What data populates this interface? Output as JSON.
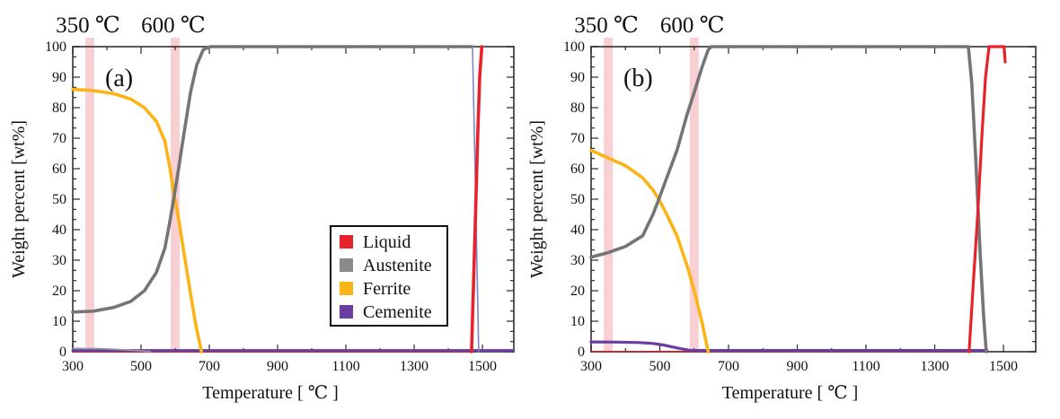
{
  "figure": {
    "background": "#ffffff",
    "frame_color": "#474747",
    "band_color": "#f2a0a6",
    "band_opacity": 0.5,
    "text_color": "#111111"
  },
  "legend": {
    "entries": [
      {
        "label": "Liquid",
        "color": "#e8222a"
      },
      {
        "label": "Austenite",
        "color": "#8a8a8a"
      },
      {
        "label": "Ferrite",
        "color": "#fcb316"
      },
      {
        "label": "Cemenite",
        "color": "#6a3da2"
      }
    ]
  },
  "chart_data": [
    {
      "type": "line",
      "panel_label": "(a)",
      "xlabel": "Temperature [ ℃ ]",
      "ylabel": "Weight percent [wt%]",
      "xlim": [
        300,
        1592
      ],
      "ylim": [
        0,
        100
      ],
      "x_major_ticks": [
        300,
        500,
        700,
        900,
        1100,
        1300,
        1500
      ],
      "x_minor_step": 100,
      "y_major_ticks": [
        0,
        10,
        20,
        30,
        40,
        50,
        60,
        70,
        80,
        90,
        100
      ],
      "y_minors_per_major": 2,
      "grid": false,
      "legend_position": "inside lower right",
      "annotations": [
        {
          "label": "350 ℃",
          "x": 350
        },
        {
          "label": "600 ℃",
          "x": 600
        }
      ],
      "series": [
        {
          "name": "liquid-baseline",
          "phase": "Liquid",
          "color": "#e8222a",
          "width": 2,
          "points": [
            [
              300,
              0
            ],
            [
              1466,
              0
            ]
          ]
        },
        {
          "name": "cemenite",
          "phase": "Cemenite",
          "color": "#6a3da2",
          "width": 3,
          "points": [
            [
              300,
              0.4
            ],
            [
              1590,
              0.4
            ]
          ]
        },
        {
          "name": "austenite-trace",
          "phase": "Austenite",
          "color": "#9a9a9a",
          "width": 1.6,
          "points": [
            [
              300,
              1.1
            ],
            [
              380,
              1.0
            ],
            [
              440,
              0.7
            ],
            [
              490,
              0.35
            ],
            [
              527,
              0.05
            ]
          ]
        },
        {
          "name": "ferrite",
          "phase": "Ferrite",
          "color": "#fcb316",
          "width": 3.6,
          "points": [
            [
              300,
              86
            ],
            [
              360,
              85.6
            ],
            [
              420,
              84.6
            ],
            [
              470,
              82.8
            ],
            [
              510,
              80
            ],
            [
              545,
              75.5
            ],
            [
              570,
              69
            ],
            [
              585,
              60
            ],
            [
              597,
              51
            ],
            [
              608,
              45
            ],
            [
              622,
              35
            ],
            [
              642,
              21
            ],
            [
              660,
              9
            ],
            [
              673,
              2
            ],
            [
              677,
              0
            ]
          ]
        },
        {
          "name": "austenite",
          "phase": "Austenite",
          "color": "#757575",
          "width": 3.6,
          "points": [
            [
              300,
              13
            ],
            [
              360,
              13.3
            ],
            [
              420,
              14.5
            ],
            [
              470,
              16.5
            ],
            [
              510,
              20
            ],
            [
              545,
              26
            ],
            [
              570,
              34
            ],
            [
              585,
              43
            ],
            [
              597,
              51
            ],
            [
              610,
              60
            ],
            [
              625,
              71
            ],
            [
              645,
              85
            ],
            [
              663,
              94
            ],
            [
              682,
              99
            ],
            [
              703,
              100
            ],
            [
              1470,
              100
            ]
          ]
        },
        {
          "name": "austenite-melting",
          "phase": "Austenite",
          "color": "#7d85c6",
          "width": 1.6,
          "points": [
            [
              1471,
              100
            ],
            [
              1480,
              52
            ],
            [
              1489,
              0
            ]
          ]
        },
        {
          "name": "liquid",
          "phase": "Liquid",
          "color": "#e8222a",
          "width": 3.6,
          "points": [
            [
              1468,
              0
            ],
            [
              1478,
              38
            ],
            [
              1486,
              70
            ],
            [
              1492,
              90
            ],
            [
              1498,
              100
            ]
          ]
        }
      ]
    },
    {
      "type": "line",
      "panel_label": "(b)",
      "xlabel": "Temperature [ ℃ ]",
      "ylabel": "Weight percent [wt%]",
      "xlim": [
        300,
        1594
      ],
      "ylim": [
        0,
        100
      ],
      "x_major_ticks": [
        300,
        500,
        700,
        900,
        1100,
        1300,
        1500
      ],
      "x_minor_step": 100,
      "y_major_ticks": [
        0,
        10,
        20,
        30,
        40,
        50,
        60,
        70,
        80,
        90,
        100
      ],
      "y_minors_per_major": 2,
      "grid": false,
      "legend_position": "none",
      "annotations": [
        {
          "label": "350 ℃",
          "x": 350
        },
        {
          "label": "600 ℃",
          "x": 600
        }
      ],
      "series": [
        {
          "name": "liquid-baseline",
          "phase": "Liquid",
          "color": "#ca252b",
          "width": 1.8,
          "points": [
            [
              300,
              0
            ],
            [
              1400,
              0
            ]
          ]
        },
        {
          "name": "cemenite",
          "phase": "Cemenite",
          "color": "#6a3da2",
          "width": 3.2,
          "points": [
            [
              300,
              3.2
            ],
            [
              380,
              3.15
            ],
            [
              440,
              3.0
            ],
            [
              480,
              2.7
            ],
            [
              510,
              2.2
            ],
            [
              540,
              1.5
            ],
            [
              565,
              0.9
            ],
            [
              585,
              0.5
            ],
            [
              600,
              0.4
            ],
            [
              1452,
              0.4
            ]
          ]
        },
        {
          "name": "ferrite",
          "phase": "Ferrite",
          "color": "#fcb316",
          "width": 3.6,
          "points": [
            [
              300,
              66
            ],
            [
              350,
              63.5
            ],
            [
              400,
              61
            ],
            [
              450,
              57
            ],
            [
              480,
              53
            ],
            [
              497,
              50
            ],
            [
              520,
              45
            ],
            [
              550,
              38
            ],
            [
              580,
              28
            ],
            [
              600,
              20
            ],
            [
              622,
              10
            ],
            [
              641,
              0
            ]
          ]
        },
        {
          "name": "austenite",
          "phase": "Austenite",
          "color": "#757575",
          "width": 3.6,
          "points": [
            [
              300,
              31
            ],
            [
              350,
              32.5
            ],
            [
              400,
              34.5
            ],
            [
              450,
              38
            ],
            [
              480,
              45
            ],
            [
              497,
              50
            ],
            [
              520,
              57
            ],
            [
              550,
              66
            ],
            [
              580,
              78
            ],
            [
              600,
              85
            ],
            [
              622,
              93
            ],
            [
              641,
              99
            ],
            [
              650,
              100
            ],
            [
              1398,
              100
            ],
            [
              1408,
              88
            ],
            [
              1420,
              62
            ],
            [
              1432,
              33
            ],
            [
              1442,
              12
            ],
            [
              1450,
              0
            ]
          ]
        },
        {
          "name": "liquid",
          "phase": "Liquid",
          "color": "#e8222a",
          "width": 3.2,
          "points": [
            [
              1400,
              0
            ],
            [
              1412,
              22
            ],
            [
              1425,
              45
            ],
            [
              1438,
              72
            ],
            [
              1448,
              90
            ],
            [
              1458,
              100
            ],
            [
              1502,
              100
            ],
            [
              1505,
              95
            ]
          ]
        }
      ]
    }
  ]
}
